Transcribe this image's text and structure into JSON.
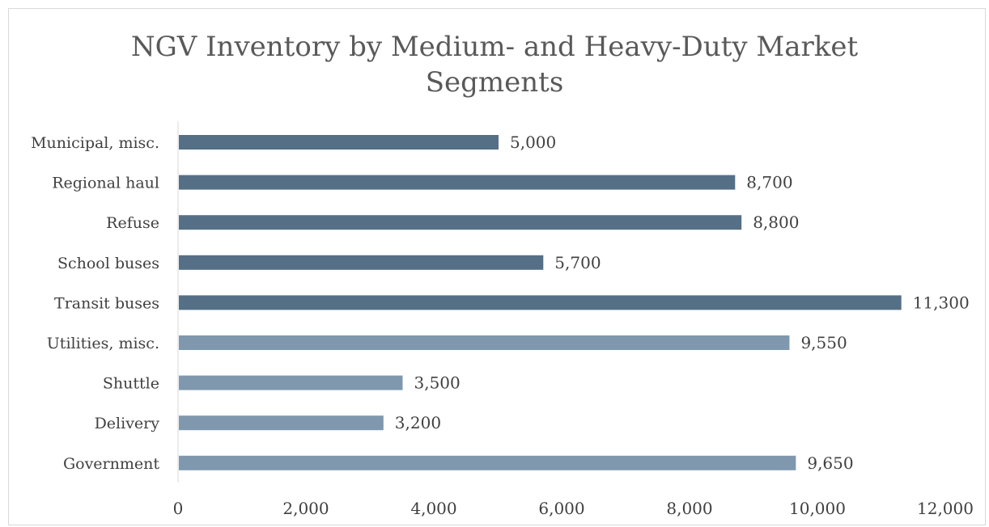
{
  "chart_data": {
    "type": "bar",
    "orientation": "horizontal",
    "title_lines": [
      "NGV Inventory by Medium- and Heavy-Duty Market",
      "Segments"
    ],
    "categories": [
      "Municipal, misc.",
      "Regional haul",
      "Refuse",
      "School buses",
      "Transit buses",
      "Utilities, misc.",
      "Shuttle",
      "Delivery",
      "Government"
    ],
    "values": [
      5000,
      8700,
      8800,
      5700,
      11300,
      9550,
      3500,
      3200,
      9650
    ],
    "value_labels": [
      "5,000",
      "8,700",
      "8,800",
      "5,700",
      "11,300",
      "9,550",
      "3,500",
      "3,200",
      "9,650"
    ],
    "bar_colors": [
      "#556f86",
      "#556f86",
      "#556f86",
      "#556f86",
      "#556f86",
      "#7f98ae",
      "#7f98ae",
      "#7f98ae",
      "#7f98ae"
    ],
    "xlim": [
      0,
      12000
    ],
    "x_ticks": [
      0,
      2000,
      4000,
      6000,
      8000,
      10000,
      12000
    ],
    "x_tick_labels": [
      "0",
      "2,000",
      "4,000",
      "6,000",
      "8,000",
      "10,000",
      "12,000"
    ],
    "grid": false,
    "legend": "none"
  }
}
